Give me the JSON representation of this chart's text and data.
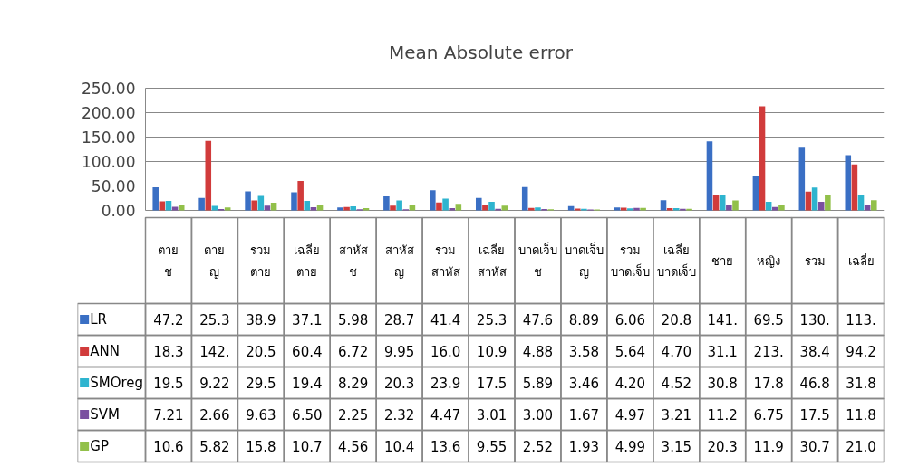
{
  "chart_data": {
    "type": "bar",
    "title": "Mean Absolute error",
    "categories": [
      "ตาย ช",
      "ตาย ญ",
      "รวม ตาย",
      "เฉลี่ย ตาย",
      "สาหัส ช",
      "สาหัส ญ",
      "รวม สาหัส",
      "เฉลี่ย สาหัส",
      "บาดเจ็บ ช",
      "บาดเจ็บ ญ",
      "รวม บาดเจ็บ",
      "เฉลี่ย บาดเจ็บ",
      "ชาย",
      "หญิง",
      "รวม",
      "เฉลี่ย"
    ],
    "series": [
      {
        "name": "LR",
        "color": "#3a6fc4",
        "values": [
          47.2,
          25.3,
          38.9,
          37.1,
          5.98,
          28.7,
          41.4,
          25.3,
          47.6,
          8.89,
          6.06,
          20.8,
          141,
          69.5,
          130,
          113
        ],
        "value_labels": [
          "47.2",
          "25.3",
          "38.9",
          "37.1",
          "5.98",
          "28.7",
          "41.4",
          "25.3",
          "47.6",
          "8.89",
          "6.06",
          "20.8",
          "141.",
          "69.5",
          "130.",
          "113."
        ]
      },
      {
        "name": "ANN",
        "color": "#d13b3b",
        "values": [
          18.3,
          142,
          20.5,
          60.4,
          6.72,
          9.95,
          16.0,
          10.9,
          4.88,
          3.58,
          5.64,
          4.7,
          31.1,
          213,
          38.4,
          94.2
        ],
        "value_labels": [
          "18.3",
          "142.",
          "20.5",
          "60.4",
          "6.72",
          "9.95",
          "16.0",
          "10.9",
          "4.88",
          "3.58",
          "5.64",
          "4.70",
          "31.1",
          "213.",
          "38.4",
          "94.2"
        ]
      },
      {
        "name": "SMOreg",
        "color": "#2eb4cf",
        "values": [
          19.5,
          9.22,
          29.5,
          19.4,
          8.29,
          20.3,
          23.9,
          17.5,
          5.89,
          3.46,
          4.2,
          4.52,
          30.8,
          17.8,
          46.8,
          31.8
        ],
        "value_labels": [
          "19.5",
          "9.22",
          "29.5",
          "19.4",
          "8.29",
          "20.3",
          "23.9",
          "17.5",
          "5.89",
          "3.46",
          "4.20",
          "4.52",
          "30.8",
          "17.8",
          "46.8",
          "31.8"
        ]
      },
      {
        "name": "SVM",
        "color": "#7a4fa0",
        "values": [
          7.21,
          2.66,
          9.63,
          6.5,
          2.25,
          2.32,
          4.47,
          3.01,
          3.0,
          1.67,
          4.97,
          3.21,
          11.2,
          6.75,
          17.5,
          11.8
        ],
        "value_labels": [
          "7.21",
          "2.66",
          "9.63",
          "6.50",
          "2.25",
          "2.32",
          "4.47",
          "3.01",
          "3.00",
          "1.67",
          "4.97",
          "3.21",
          "11.2",
          "6.75",
          "17.5",
          "11.8"
        ]
      },
      {
        "name": "GP",
        "color": "#92c04a",
        "values": [
          10.6,
          5.82,
          15.8,
          10.7,
          4.56,
          10.4,
          13.6,
          9.55,
          2.52,
          1.93,
          4.99,
          3.15,
          20.3,
          11.9,
          30.7,
          21.0
        ],
        "value_labels": [
          "10.6",
          "5.82",
          "15.8",
          "10.7",
          "4.56",
          "10.4",
          "13.6",
          "9.55",
          "2.52",
          "1.93",
          "4.99",
          "3.15",
          "20.3",
          "11.9",
          "30.7",
          "21.0"
        ]
      }
    ],
    "ylim": [
      0,
      250
    ],
    "yticks": [
      {
        "value": 0,
        "label": "0.00"
      },
      {
        "value": 50,
        "label": "50.00"
      },
      {
        "value": 100,
        "label": "100.00"
      },
      {
        "value": 150,
        "label": "150.00"
      },
      {
        "value": 200,
        "label": "200.00"
      },
      {
        "value": 250,
        "label": "250.00"
      }
    ],
    "grid": "y",
    "legend": "bottom"
  }
}
